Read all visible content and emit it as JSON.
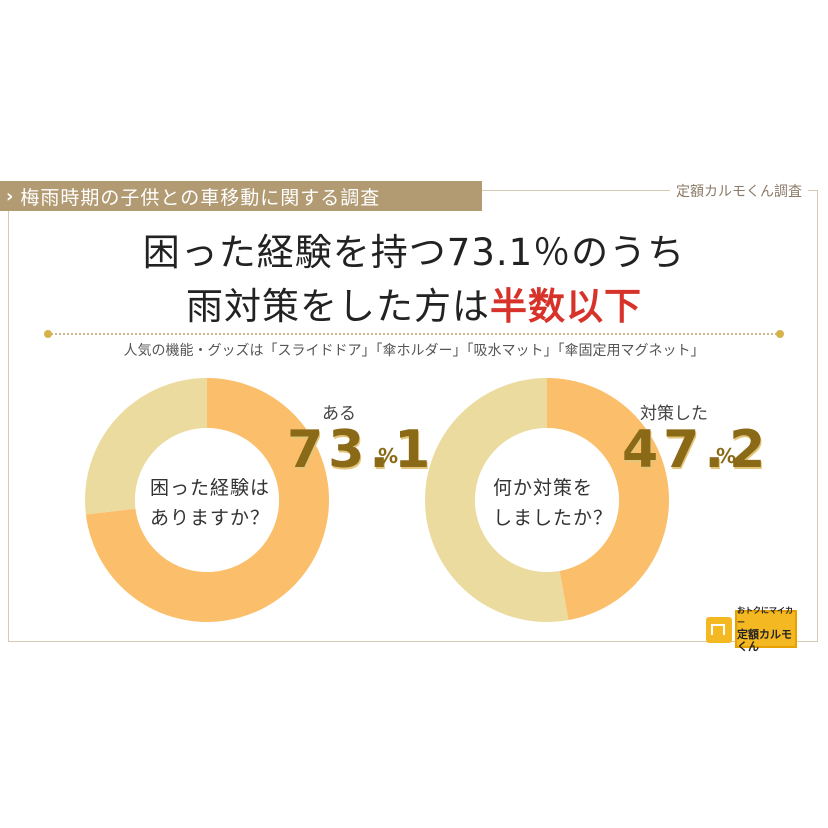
{
  "header": {
    "banner_title": "梅雨時期の子供との車移動に関する調査",
    "credit": "定額カルモくん調査"
  },
  "headline": {
    "line1": "困った経験を持つ73.1％のうち",
    "line2_prefix": "雨対策をした方は",
    "line2_emphasis": "半数以下"
  },
  "subtitle": "人気の機能・グッズは「スライドドア」「傘ホルダー」「吸水マット」「傘固定用マグネット」",
  "colors": {
    "primary": "#fbbf6b",
    "secondary": "#ecdb9f",
    "emphasis": "#d7332a",
    "number": "#8a6a16"
  },
  "chart_data": [
    {
      "type": "pie",
      "center_label_line1": "困った経験は",
      "center_label_line2": "ありますか？",
      "slices": [
        {
          "label": "ある",
          "value": 73.1
        },
        {
          "label": "",
          "value": 26.9
        }
      ],
      "value_display": "73.1",
      "unit": "%"
    },
    {
      "type": "pie",
      "center_label_line1": "何か対策を",
      "center_label_line2": "しましたか？",
      "slices": [
        {
          "label": "対策した",
          "value": 47.2
        },
        {
          "label": "",
          "value": 52.8
        }
      ],
      "value_display": "47.2",
      "unit": "%"
    }
  ],
  "logo": {
    "line1": "おトクにマイカー",
    "line2": "定額カルモくん"
  }
}
